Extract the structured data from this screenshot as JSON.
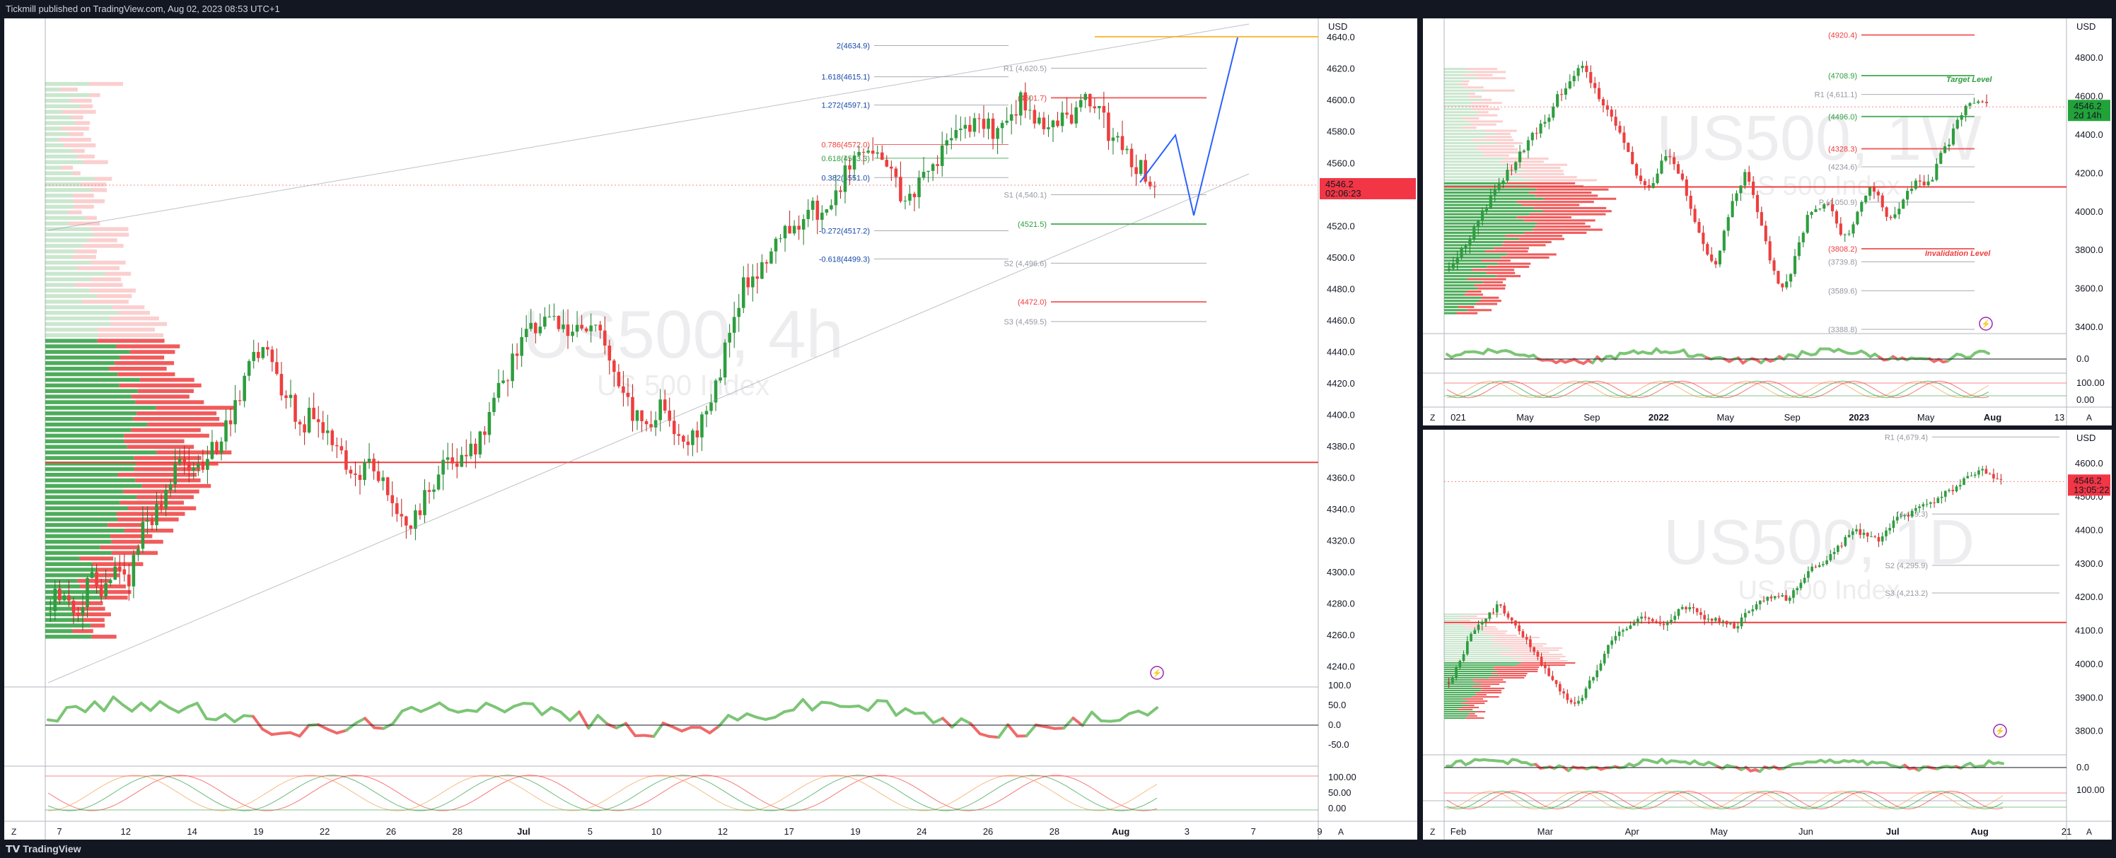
{
  "header": {
    "publisher": "Tickmill published on TradingView.com, Aug 02, 2023 08:53 UTC+1"
  },
  "footer": {
    "brand": "TradingView"
  },
  "colors": {
    "bull": "#2e9e3e",
    "bear": "#ef3e3e",
    "bg": "#ffffff",
    "frame": "#131722",
    "fib": "#1848a8"
  },
  "chart_data": [
    {
      "type": "candlestick",
      "symbol_watermark": "US500, 4h",
      "subtitle_watermark": "US 500 Index",
      "currency": "USD",
      "price_label": "4546.2",
      "countdown": "02:06:23",
      "ylim": [
        4230,
        4645
      ],
      "y_ticks": [
        "4640.0",
        "4620.0",
        "4600.0",
        "4580.0",
        "4560.0",
        "4540.0",
        "4520.0",
        "4500.0",
        "4480.0",
        "4460.0",
        "4440.0",
        "4420.0",
        "4400.0",
        "4380.0",
        "4360.0",
        "4340.0",
        "4320.0",
        "4300.0",
        "4280.0",
        "4260.0",
        "4240.0"
      ],
      "x_ticks": [
        "7",
        "12",
        "14",
        "19",
        "22",
        "26",
        "28",
        "Jul",
        "5",
        "10",
        "12",
        "17",
        "19",
        "24",
        "26",
        "28",
        "Aug",
        "3",
        "7",
        "9"
      ],
      "levels": [
        {
          "label": "2(4634.9)",
          "value": 4634.9,
          "kind": "fib"
        },
        {
          "label": "1.618(4615.1)",
          "value": 4615.1,
          "kind": "fib"
        },
        {
          "label": "1.272(4597.1)",
          "value": 4597.1,
          "kind": "fib"
        },
        {
          "label": "0.786(4572.0)",
          "value": 4572.0,
          "kind": "fibred"
        },
        {
          "label": "0.618(4563.3)",
          "value": 4563.3,
          "kind": "fibgreen"
        },
        {
          "label": "0.382(4551.0)",
          "value": 4551.0,
          "kind": "fib"
        },
        {
          "label": "-0.272(4517.2)",
          "value": 4517.2,
          "kind": "fib"
        },
        {
          "label": "-0.618(4499.3)",
          "value": 4499.3,
          "kind": "fib"
        },
        {
          "label": "R1 (4,620.5)",
          "value": 4620.5,
          "kind": "pivot"
        },
        {
          "label": "(4601.7)",
          "value": 4601.7,
          "kind": "red"
        },
        {
          "label": "S1 (4,540.1)",
          "value": 4540.1,
          "kind": "pivot"
        },
        {
          "label": "(4521.5)",
          "value": 4521.5,
          "kind": "green"
        },
        {
          "label": "S2 (4,496.6)",
          "value": 4496.6,
          "kind": "pivot"
        },
        {
          "label": "(4472.0)",
          "value": 4472.0,
          "kind": "red"
        },
        {
          "label": "S3 (4,459.5)",
          "value": 4459.5,
          "kind": "pivot"
        }
      ],
      "rsi_ticks": [
        "100.0",
        "50.0",
        "0.0",
        "-50.0"
      ],
      "stoch_ticks": [
        "100.00",
        "50.00",
        "0.00"
      ],
      "path": [
        4280,
        4292,
        4270,
        4300,
        4285,
        4310,
        4296,
        4330,
        4340,
        4360,
        4372,
        4368,
        4375,
        4390,
        4405,
        4430,
        4445,
        4425,
        4410,
        4392,
        4405,
        4380,
        4370,
        4362,
        4370,
        4355,
        4340,
        4330,
        4345,
        4360,
        4372,
        4368,
        4380,
        4400,
        4420,
        4440,
        4452,
        4458,
        4460,
        4457,
        4455,
        4458,
        4440,
        4410,
        4400,
        4395,
        4410,
        4390,
        4385,
        4395,
        4420,
        4450,
        4480,
        4490,
        4505,
        4520,
        4515,
        4530,
        4528,
        4535,
        4560,
        4570,
        4565,
        4560,
        4540,
        4545,
        4555,
        4568,
        4575,
        4582,
        4588,
        4575,
        4590,
        4600,
        4590,
        4585,
        4588,
        4592,
        4600,
        4588,
        4575,
        4565,
        4555,
        4546
      ]
    },
    {
      "type": "candlestick",
      "symbol_watermark": "US500, 1W",
      "subtitle_watermark": "US 500 Index",
      "currency": "USD",
      "price_label": "4546.2",
      "countdown": "2d 14h",
      "ylim": [
        3330,
        4970
      ],
      "y_ticks": [
        "4800.0",
        "4600.0",
        "4400.0",
        "4200.0",
        "4000.0",
        "3800.0",
        "3600.0",
        "3400.0"
      ],
      "x_ticks": [
        "021",
        "May",
        "Sep",
        "2022",
        "May",
        "Sep",
        "2023",
        "May",
        "Aug",
        "13"
      ],
      "levels": [
        {
          "label": "(4920.4)",
          "value": 4920.4,
          "kind": "red"
        },
        {
          "label": "(4708.9)",
          "value": 4708.9,
          "kind": "green"
        },
        {
          "label": "R1 (4,611.1)",
          "value": 4611.1,
          "kind": "pivot"
        },
        {
          "label": "(4496.0)",
          "value": 4496.0,
          "kind": "green"
        },
        {
          "label": "(4328.3)",
          "value": 4328.3,
          "kind": "red"
        },
        {
          "label": "(4234.6)",
          "value": 4234.6,
          "kind": "pivot"
        },
        {
          "label": "P (4,050.9)",
          "value": 4050.9,
          "kind": "pivot"
        },
        {
          "label": "(3808.2)",
          "value": 3808.2,
          "kind": "red"
        },
        {
          "label": "(3739.8)",
          "value": 3739.8,
          "kind": "pivot"
        },
        {
          "label": "(3589.6)",
          "value": 3589.6,
          "kind": "pivot"
        },
        {
          "label": "(3388.8)",
          "value": 3388.8,
          "kind": "pivot"
        }
      ],
      "annotations": [
        "Target Level",
        "Invalidation Level"
      ],
      "rsi_ticks": [
        "0.0"
      ],
      "stoch_ticks": [
        "100.00",
        "0.00"
      ],
      "path": [
        3700,
        3760,
        3820,
        3900,
        3980,
        4050,
        4120,
        4180,
        4230,
        4290,
        4350,
        4410,
        4460,
        4520,
        4600,
        4660,
        4700,
        4750,
        4690,
        4620,
        4540,
        4480,
        4400,
        4300,
        4200,
        4130,
        4150,
        4230,
        4300,
        4250,
        4150,
        4020,
        3900,
        3800,
        3700,
        3850,
        4000,
        4120,
        4200,
        4100,
        3950,
        3780,
        3650,
        3600,
        3700,
        3850,
        3980,
        4000,
        4050,
        4020,
        3900,
        3880,
        3950,
        4050,
        4120,
        4080,
        3980,
        3950,
        4050,
        4120,
        4150,
        4130,
        4170,
        4280,
        4350,
        4440,
        4520,
        4560,
        4590,
        4546
      ]
    },
    {
      "type": "candlestick",
      "symbol_watermark": "US500, 1D",
      "subtitle_watermark": "US 500 Index",
      "currency": "USD",
      "price_label": "4546.2",
      "countdown": "13:05:22",
      "ylim": [
        3740,
        4680
      ],
      "y_ticks": [
        "4600.0",
        "4500.0",
        "4400.0",
        "4300.0",
        "4200.0",
        "4100.0",
        "4000.0",
        "3900.0",
        "3800.0"
      ],
      "x_ticks": [
        "Feb",
        "Mar",
        "Apr",
        "May",
        "Jun",
        "Jul",
        "Aug",
        "21"
      ],
      "levels": [
        {
          "label": "R1 (4,679.4)",
          "value": 4679.4,
          "kind": "pivot"
        },
        {
          "label": "(4,449.3)",
          "value": 4449.3,
          "kind": "pivot"
        },
        {
          "label": "S2 (4,295.9)",
          "value": 4295.9,
          "kind": "pivot"
        },
        {
          "label": "S3 (4,213.2)",
          "value": 4213.2,
          "kind": "pivot"
        }
      ],
      "rsi_ticks": [
        "0.0"
      ],
      "stoch_ticks": [
        "100.00"
      ],
      "path": [
        3950,
        4000,
        4080,
        4120,
        4150,
        4180,
        4130,
        4100,
        4050,
        4000,
        3960,
        3920,
        3880,
        3900,
        3960,
        4020,
        4080,
        4100,
        4120,
        4150,
        4130,
        4110,
        4150,
        4170,
        4160,
        4130,
        4140,
        4120,
        4110,
        4150,
        4180,
        4200,
        4210,
        4190,
        4230,
        4270,
        4300,
        4310,
        4350,
        4380,
        4400,
        4380,
        4370,
        4410,
        4440,
        4450,
        4470,
        4480,
        4500,
        4520,
        4540,
        4560,
        4580,
        4560,
        4546
      ]
    }
  ]
}
